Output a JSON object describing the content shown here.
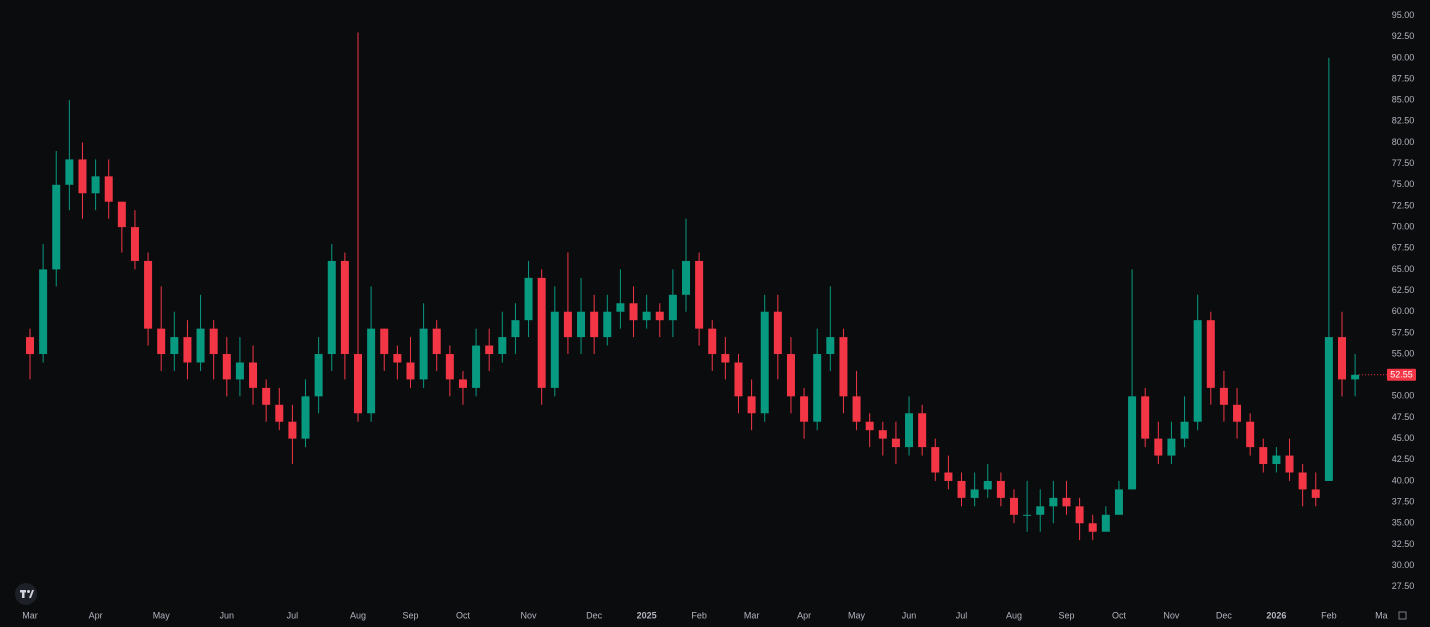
{
  "chart_data": {
    "type": "candlestick",
    "up_color": "#089981",
    "down_color": "#f23645",
    "last_price_color": "#f23645",
    "grid": false,
    "categories": [
      null,
      null,
      null,
      null,
      null,
      null,
      null,
      null,
      null,
      null,
      null,
      null,
      null,
      null,
      null,
      null,
      null,
      null,
      null,
      null,
      null,
      null,
      null,
      null,
      null,
      null,
      null,
      null,
      null,
      null,
      null,
      null,
      null,
      null,
      null,
      null,
      null,
      null,
      null,
      null,
      null,
      null,
      null,
      null,
      null,
      null,
      null,
      null,
      null,
      null,
      null,
      null,
      null,
      null,
      null,
      null,
      null,
      null,
      null,
      null,
      null,
      null,
      null,
      null,
      null,
      null,
      null,
      null,
      null,
      null,
      null,
      null,
      null,
      null,
      null,
      null,
      null,
      null,
      null,
      null,
      null,
      null,
      null,
      null,
      null,
      null,
      null,
      null,
      null,
      null,
      null,
      null,
      null,
      null,
      null,
      null,
      null,
      null,
      null,
      null,
      null,
      null
    ],
    "open": [
      57,
      55,
      65,
      75,
      78,
      74,
      76,
      73,
      70,
      66,
      58,
      55,
      57,
      54,
      58,
      55,
      52,
      54,
      51,
      49,
      47,
      45,
      50,
      55,
      66,
      55,
      48,
      58,
      55,
      54,
      52,
      58,
      55,
      52,
      51,
      56,
      55,
      57,
      59,
      64,
      51,
      60,
      57,
      60,
      57,
      60,
      61,
      59,
      60,
      59,
      62,
      66,
      58,
      55,
      54,
      50,
      48,
      60,
      55,
      50,
      47,
      55,
      57,
      50,
      47,
      46,
      45,
      44,
      48,
      44,
      41,
      40,
      38,
      39,
      40,
      38,
      36,
      36,
      37,
      38,
      37,
      35,
      34,
      36,
      39,
      50,
      45,
      43,
      45,
      47,
      59,
      51,
      49,
      47,
      44,
      42,
      43,
      41,
      39,
      40,
      57,
      52
    ],
    "high": [
      58,
      68,
      79,
      85,
      80,
      78,
      78,
      73,
      72,
      67,
      63,
      60,
      59,
      62,
      59,
      57,
      57,
      56,
      52,
      51,
      49,
      52,
      57,
      68,
      67,
      93,
      63,
      58,
      56,
      57,
      61,
      59,
      56,
      53,
      58,
      58,
      60,
      61,
      66,
      65,
      63,
      67,
      64,
      62,
      62,
      65,
      63,
      62,
      61,
      65,
      71,
      67,
      59,
      57,
      55,
      52,
      62,
      62,
      57,
      51,
      58,
      63,
      58,
      53,
      48,
      47,
      47,
      50,
      49,
      45,
      43,
      41,
      41,
      42,
      41,
      39,
      40,
      39,
      40,
      40,
      38,
      36,
      37,
      40,
      65,
      51,
      47,
      47,
      50,
      62,
      60,
      53,
      51,
      48,
      45,
      44,
      45,
      42,
      41,
      90,
      60,
      55
    ],
    "low": [
      52,
      54,
      63,
      72,
      71,
      72,
      71,
      67,
      65,
      56,
      53,
      53,
      52,
      53,
      52,
      50,
      50,
      49,
      47,
      46,
      42,
      44,
      48,
      53,
      52,
      47,
      47,
      53,
      52,
      51,
      51,
      53,
      50,
      49,
      50,
      53,
      54,
      55,
      57,
      49,
      50,
      55,
      55,
      55,
      56,
      58,
      57,
      58,
      57,
      57,
      60,
      56,
      53,
      52,
      48,
      46,
      47,
      52,
      48,
      45,
      46,
      53,
      48,
      46,
      44,
      43,
      42,
      43,
      43,
      40,
      39,
      37,
      37,
      38,
      37,
      35,
      34,
      34,
      35,
      36,
      33,
      33,
      34,
      36,
      39,
      44,
      42,
      42,
      44,
      46,
      49,
      47,
      45,
      43,
      41,
      41,
      40,
      37,
      37,
      40,
      50,
      50
    ],
    "close": [
      55,
      65,
      75,
      78,
      74,
      76,
      73,
      70,
      66,
      58,
      55,
      57,
      54,
      58,
      55,
      52,
      54,
      51,
      49,
      47,
      45,
      50,
      55,
      66,
      55,
      48,
      58,
      55,
      54,
      52,
      58,
      55,
      52,
      51,
      56,
      55,
      57,
      59,
      64,
      51,
      60,
      57,
      60,
      57,
      60,
      61,
      59,
      60,
      59,
      62,
      66,
      58,
      55,
      54,
      50,
      48,
      60,
      55,
      50,
      47,
      55,
      57,
      50,
      47,
      46,
      45,
      44,
      48,
      44,
      41,
      40,
      38,
      39,
      40,
      38,
      36,
      36,
      37,
      38,
      37,
      35,
      34,
      36,
      39,
      50,
      45,
      43,
      45,
      47,
      59,
      51,
      49,
      47,
      44,
      42,
      43,
      41,
      39,
      38,
      57,
      52,
      52.55
    ],
    "ylim": [
      22.74,
      96.84
    ],
    "yticks": [
      {
        "value": 95,
        "label": "95.00"
      },
      {
        "value": 92.5,
        "label": "92.50"
      },
      {
        "value": 90,
        "label": "90.00"
      },
      {
        "value": 87.5,
        "label": "87.50"
      },
      {
        "value": 85,
        "label": "85.00"
      },
      {
        "value": 82.5,
        "label": "82.50"
      },
      {
        "value": 80,
        "label": "80.00"
      },
      {
        "value": 77.5,
        "label": "77.50"
      },
      {
        "value": 75,
        "label": "75.00"
      },
      {
        "value": 72.5,
        "label": "72.50"
      },
      {
        "value": 70,
        "label": "70.00"
      },
      {
        "value": 67.5,
        "label": "67.50"
      },
      {
        "value": 65,
        "label": "65.00"
      },
      {
        "value": 62.5,
        "label": "62.50"
      },
      {
        "value": 60,
        "label": "60.00"
      },
      {
        "value": 57.5,
        "label": "57.50"
      },
      {
        "value": 55,
        "label": "55.00"
      },
      {
        "value": 52.5,
        "label": "52.50"
      },
      {
        "value": 50,
        "label": "50.00"
      },
      {
        "value": 47.5,
        "label": "47.50"
      },
      {
        "value": 45,
        "label": "45.00"
      },
      {
        "value": 42.5,
        "label": "42.50"
      },
      {
        "value": 40,
        "label": "40.00"
      },
      {
        "value": 37.5,
        "label": "37.50"
      },
      {
        "value": 35,
        "label": "35.00"
      },
      {
        "value": 32.5,
        "label": "32.50"
      },
      {
        "value": 30,
        "label": "30.00"
      },
      {
        "value": 27.5,
        "label": "27.50"
      }
    ],
    "xticks": [
      {
        "value": 0,
        "label": "Mar"
      },
      {
        "value": 5,
        "label": "Apr"
      },
      {
        "value": 10,
        "label": "May"
      },
      {
        "value": 15,
        "label": "Jun"
      },
      {
        "value": 20,
        "label": "Jul"
      },
      {
        "value": 25,
        "label": "Aug"
      },
      {
        "value": 29,
        "label": "Sep"
      },
      {
        "value": 33,
        "label": "Oct"
      },
      {
        "value": 38,
        "label": "Nov"
      },
      {
        "value": 43,
        "label": "Dec"
      },
      {
        "value": 47,
        "label": "2025"
      },
      {
        "value": 51,
        "label": "Feb"
      },
      {
        "value": 55,
        "label": "Mar"
      },
      {
        "value": 59,
        "label": "Apr"
      },
      {
        "value": 63,
        "label": "May"
      },
      {
        "value": 67,
        "label": "Jun"
      },
      {
        "value": 71,
        "label": "Jul"
      },
      {
        "value": 75,
        "label": "Aug"
      },
      {
        "value": 79,
        "label": "Sep"
      },
      {
        "value": 83,
        "label": "Oct"
      },
      {
        "value": 87,
        "label": "Nov"
      },
      {
        "value": 91,
        "label": "Dec"
      },
      {
        "value": 95,
        "label": "2026"
      },
      {
        "value": 99,
        "label": "Feb"
      },
      {
        "value": 103,
        "label": "Ma"
      }
    ]
  }
}
